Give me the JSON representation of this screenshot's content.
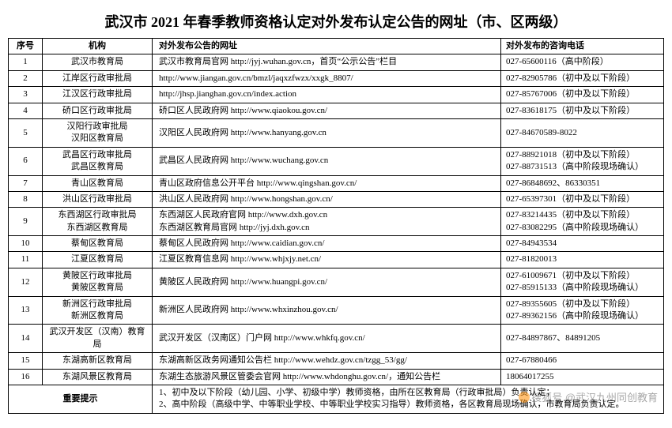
{
  "title": "武汉市 2021 年春季教师资格认定对外发布认定公告的网址（市、区两级）",
  "columns": {
    "seq": "序号",
    "org": "机构",
    "url": "对外发布公告的网址",
    "tel": "对外发布的咨询电话"
  },
  "rows": [
    {
      "seq": "1",
      "org": "武汉市教育局",
      "url": "武汉市教育局官网 http://jyj.wuhan.gov.cn，首页“公示公告”栏目",
      "tel": "027-65600116（高中阶段）"
    },
    {
      "seq": "2",
      "org": "江岸区行政审批局",
      "url": "http://www.jiangan.gov.cn/bmzl/jaqxzfwzx/xxgk_8807/",
      "tel": "027-82905786（初中及以下阶段）"
    },
    {
      "seq": "3",
      "org": "江汉区行政审批局",
      "url": "http://jhsp.jianghan.gov.cn/index.action",
      "tel": "027-85767006（初中及以下阶段）"
    },
    {
      "seq": "4",
      "org": "硚口区行政审批局",
      "url": "硚口区人民政府网 http://www.qiaokou.gov.cn/",
      "tel": "027-83618175（初中及以下阶段）"
    },
    {
      "seq": "5",
      "org": "汉阳行政审批局\n汉阳区教育局",
      "url": "汉阳区人民政府网 http://www.hanyang.gov.cn",
      "tel": "027-84670589-8022"
    },
    {
      "seq": "6",
      "org": "武昌区行政审批局\n武昌区教育局",
      "url": "武昌区人民政府网 http://www.wuchang.gov.cn",
      "tel": "027-88921018（初中及以下阶段）\n027-88731513（高中阶段现场确认）"
    },
    {
      "seq": "7",
      "org": "青山区教育局",
      "url": "青山区政府信息公开平台 http://www.qingshan.gov.cn/",
      "tel": "027-86848692、86330351"
    },
    {
      "seq": "8",
      "org": "洪山区行政审批局",
      "url": "洪山区人民政府网 http://www.hongshan.gov.cn/",
      "tel": "027-65397301（初中及以下阶段）"
    },
    {
      "seq": "9",
      "org": "东西湖区行政审批局\n东西湖区教育局",
      "url": "东西湖区人民政府官网 http://www.dxh.gov.cn\n东西湖区教育局官网 http://jyj.dxh.gov.cn",
      "tel": "027-83214435（初中及以下阶段）\n027-83082295（高中阶段现场确认）"
    },
    {
      "seq": "10",
      "org": "蔡甸区教育局",
      "url": "蔡甸区人民政府网 http://www.caidian.gov.cn/",
      "tel": "027-84943534"
    },
    {
      "seq": "11",
      "org": "江夏区教育局",
      "url": "江夏区教育信息网 http://www.whjxjy.net.cn/",
      "tel": "027-81820013"
    },
    {
      "seq": "12",
      "org": "黄陂区行政审批局\n黄陂区教育局",
      "url": "黄陂区人民政府网 http://www.huangpi.gov.cn/",
      "tel": "027-61009671（初中及以下阶段）\n027-85915133（高中阶段现场确认）"
    },
    {
      "seq": "13",
      "org": "新洲区行政审批局\n新洲区教育局",
      "url": "新洲区人民政府网 http://www.whxinzhou.gov.cn/",
      "tel": "027-89355605（初中及以下阶段）\n027-89362156（高中阶段现场确认）"
    },
    {
      "seq": "14",
      "org": "武汉开发区（汉南）教育局",
      "url": "武汉开发区（汉南区）门户网 http://www.whkfq.gov.cn/",
      "tel": "027-84897867、84891205"
    },
    {
      "seq": "15",
      "org": "东湖高新区教育局",
      "url": "东湖高新区政务网通知公告栏 http://www.wehdz.gov.cn/tzgg_53/gg/",
      "tel": "027-67880466"
    },
    {
      "seq": "16",
      "org": "东湖风景区教育局",
      "url": "东湖生态旅游风景区管委会官网 http://www.whdonghu.gov.cn/，通知公告栏",
      "tel": "18064017255"
    }
  ],
  "note": {
    "label": "重要提示",
    "body": "1、初中及以下阶段（幼儿园、小学、初级中学）教师资格，由所在区教育局（行政审批局）负责认定；\n2、高中阶段（高级中学、中等职业学校、中等职业学校实习指导）教师资格，各区教育局现场确认，市教育局负责认定。"
  },
  "watermark": "搜狐号 @武汉九州同创教育"
}
